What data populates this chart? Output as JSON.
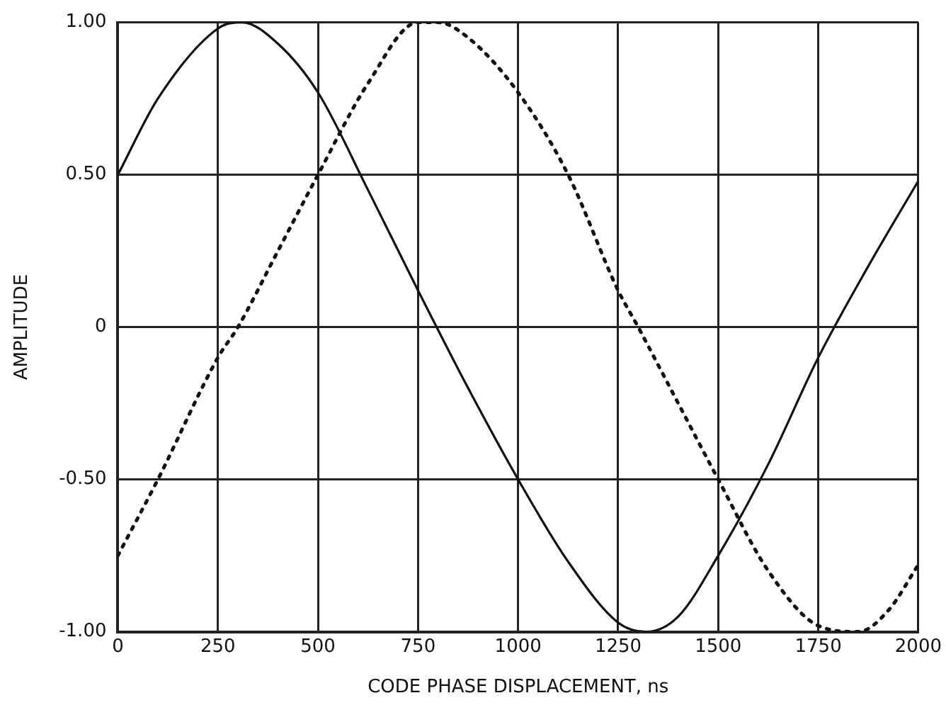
{
  "chart_data": {
    "type": "line",
    "xlabel": "CODE PHASE DISPLACEMENT, ns",
    "ylabel": "AMPLITUDE",
    "xlim": [
      0,
      2000
    ],
    "xticks": [
      0,
      250,
      500,
      750,
      1000,
      1250,
      1500,
      1750,
      2000
    ],
    "ylim": [
      -1,
      1
    ],
    "yticks": [
      {
        "value": -1,
        "label": "-1.00"
      },
      {
        "value": -0.5,
        "label": "-0.50"
      },
      0,
      {
        "value": 0.5,
        "label": "0.50"
      },
      {
        "value": 1,
        "label": "1.00"
      }
    ],
    "grid": true,
    "legend": false,
    "marker": "none",
    "series": [
      {
        "color": "#111111",
        "line_style": "solid",
        "x": [
          0,
          100,
          250,
          310,
          400,
          500,
          625,
          750,
          875,
          1000,
          1125,
          1250,
          1320,
          1400,
          1500,
          1625,
          1750,
          1875,
          2000
        ],
        "values": [
          0.5,
          0.75,
          0.98,
          1.0,
          0.93,
          0.77,
          0.45,
          0.12,
          -0.2,
          -0.5,
          -0.77,
          -0.97,
          -1.0,
          -0.95,
          -0.75,
          -0.45,
          -0.1,
          0.2,
          0.48
        ]
      },
      {
        "color": "#111111",
        "line_style": "dotted",
        "x": [
          0,
          100,
          250,
          300,
          400,
          500,
          625,
          750,
          800,
          875,
          1000,
          1125,
          1250,
          1300,
          1400,
          1500,
          1625,
          1750,
          1850,
          1925,
          2000
        ],
        "values": [
          -0.75,
          -0.5,
          -0.1,
          0.0,
          0.25,
          0.5,
          0.8,
          1.0,
          1.0,
          0.95,
          0.77,
          0.5,
          0.12,
          0.0,
          -0.25,
          -0.5,
          -0.8,
          -0.98,
          -1.0,
          -0.93,
          -0.78
        ]
      }
    ]
  }
}
